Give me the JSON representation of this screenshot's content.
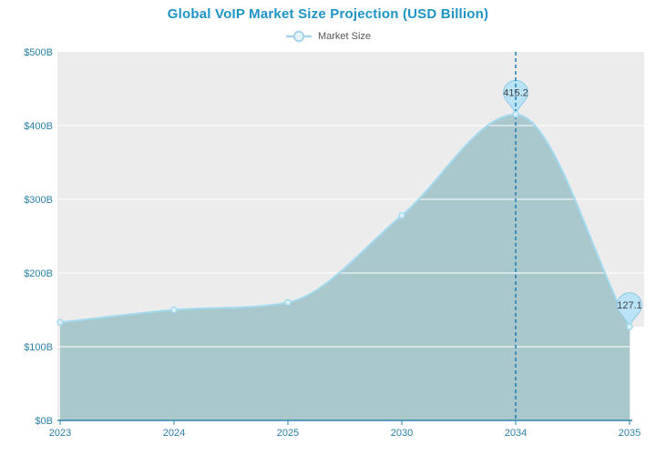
{
  "title": "Global VoIP Market Size Projection (USD Billion)",
  "legend": {
    "label": "Market Size"
  },
  "colors": {
    "title_text": "#1d94c4",
    "axis_label_text": "#2a80a6",
    "axis_line": "#2e86ad",
    "plot_background": "#ececec",
    "grid_line": "#ffffff",
    "area_fill": "#a9c8cc",
    "series_line": "#a4daef",
    "marker_fill": "#def0f8",
    "marker_stroke": "#a4daef",
    "balloon_fill": "#bae3f5",
    "balloon_stroke": "#8fcbe7",
    "dashed_line": "#1e7db2",
    "value_text": "#3c4349",
    "legend_text": "#555658"
  },
  "chart_data": {
    "type": "area",
    "title": "Global VoIP Market Size Projection (USD Billion)",
    "categories": [
      "2023",
      "2024",
      "2025",
      "2030",
      "2034",
      "2035"
    ],
    "series": [
      {
        "name": "Market Size",
        "values": [
          133,
          150,
          160,
          278,
          415.2,
          127.1
        ]
      }
    ],
    "annotations": [
      {
        "category": "2034",
        "value": 415.2,
        "label": "415.2",
        "dashed_line": true
      },
      {
        "category": "2035",
        "value": 127.1,
        "label": "127.1",
        "dashed_line": false
      }
    ],
    "yticks": [
      {
        "label": "$0B",
        "value": 0
      },
      {
        "label": "$100B",
        "value": 100
      },
      {
        "label": "$200B",
        "value": 200
      },
      {
        "label": "$300B",
        "value": 300
      },
      {
        "label": "$400B",
        "value": 400
      },
      {
        "label": "$500B",
        "value": 500
      }
    ],
    "ylim": [
      0,
      500
    ],
    "xlabel": "",
    "ylabel": "",
    "grid": true,
    "legend_position": "top"
  }
}
